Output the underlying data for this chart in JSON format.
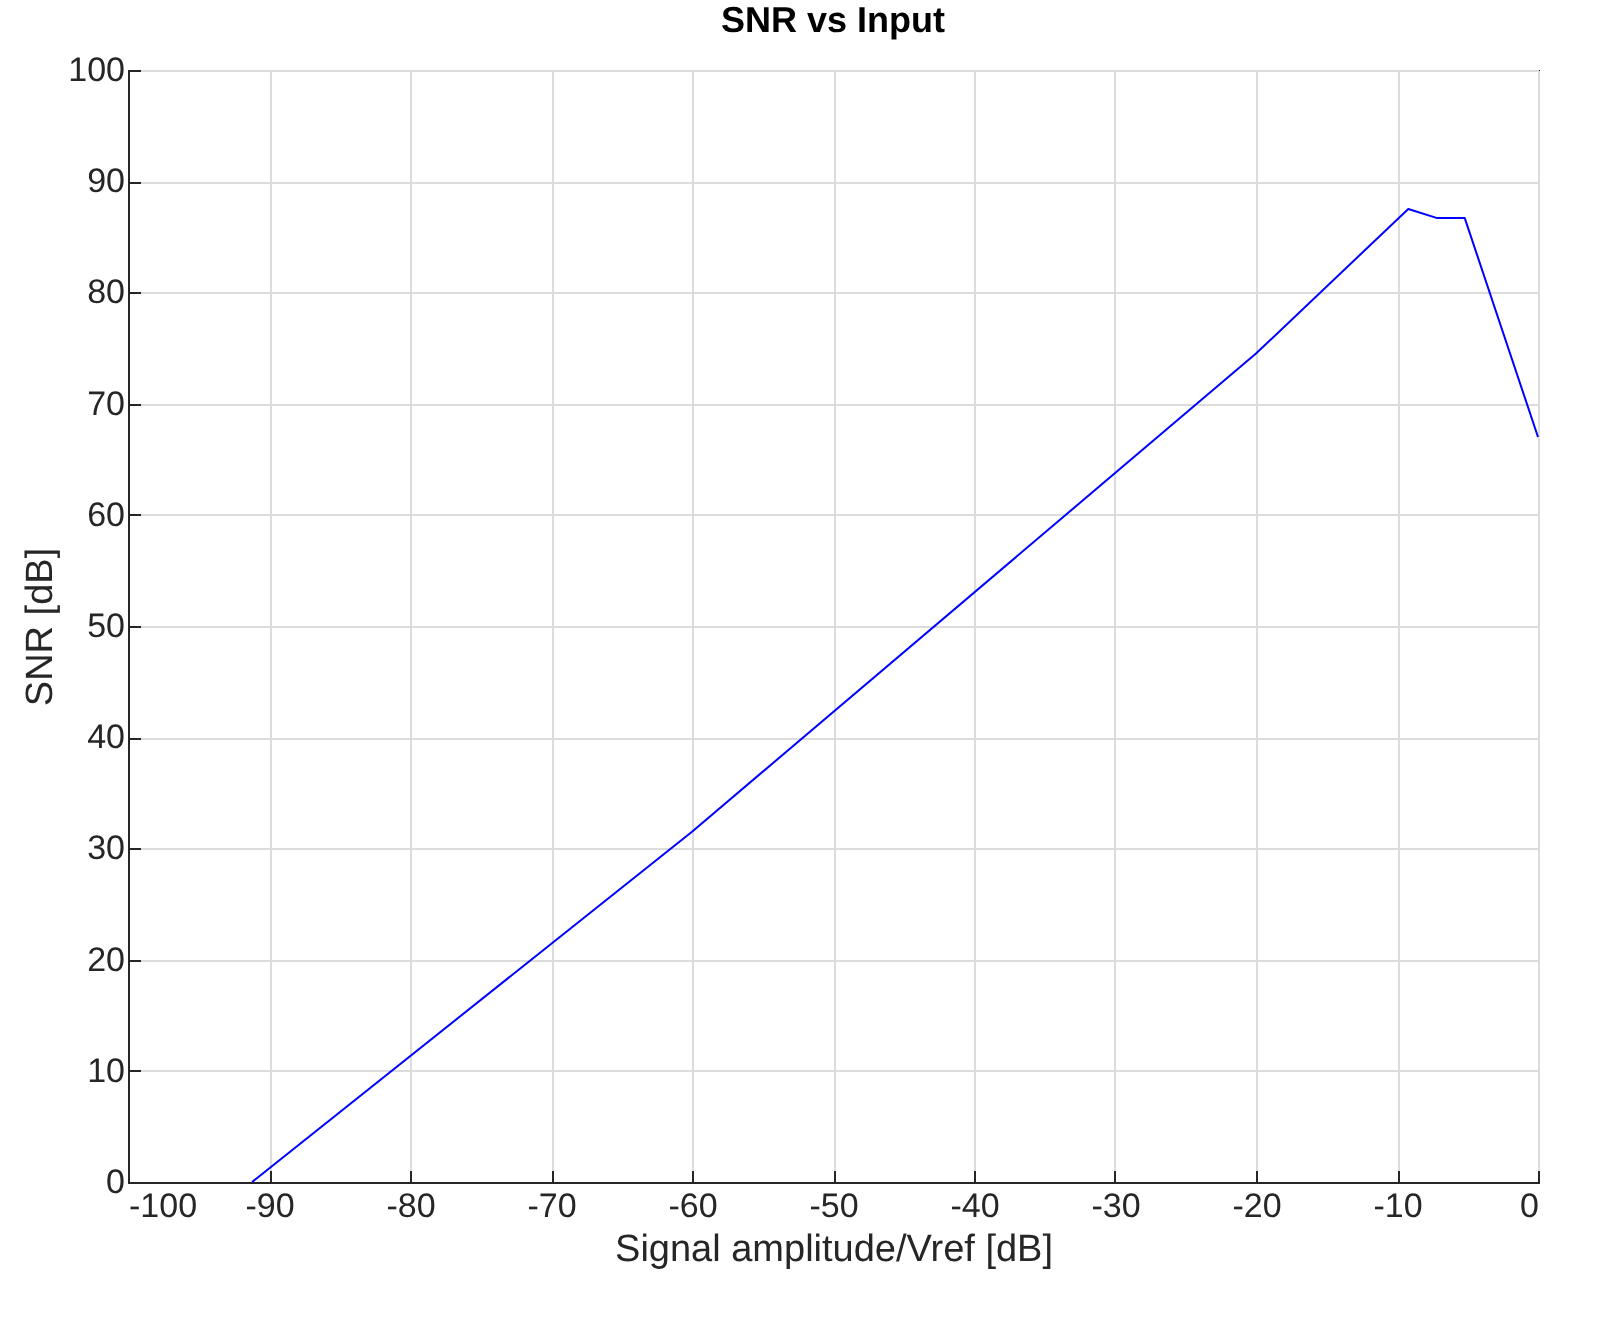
{
  "chart_data": {
    "type": "line",
    "title": "SNR vs Input",
    "xlabel": "Signal amplitude/Vref [dB]",
    "ylabel": "SNR [dB]",
    "x": [
      -91.2,
      -60,
      -20,
      -9.2,
      -7.2,
      -5.2,
      0
    ],
    "series": [
      {
        "color": "#0000ff",
        "values": [
          0,
          31.5,
          74.5,
          87.5,
          86.7,
          86.7,
          67
        ]
      }
    ],
    "xlim": [
      -100,
      0
    ],
    "xticks": [
      -100,
      -90,
      -80,
      -70,
      -60,
      -50,
      -40,
      -30,
      -20,
      -10,
      0
    ],
    "ylim": [
      0,
      100
    ],
    "yticks": [
      0,
      10,
      20,
      30,
      40,
      50,
      60,
      70,
      80,
      90,
      100
    ],
    "grid": true,
    "marker": "none",
    "line_style": "solid"
  }
}
